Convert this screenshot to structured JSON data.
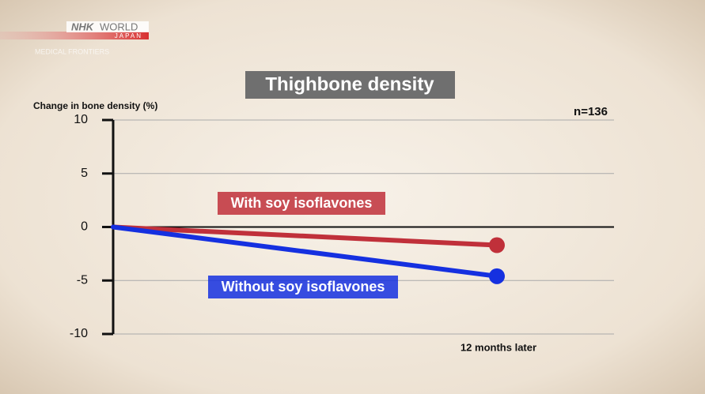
{
  "brand": {
    "mark": "NHK",
    "word": "WORLD",
    "sub": "JAPAN",
    "program": "MEDICAL FRONTIERS"
  },
  "chart_data": {
    "type": "line",
    "title": "Thighbone density",
    "y_label": "Change in bone density (%)",
    "annotation": "n=136",
    "categories": [
      null,
      "12 months later"
    ],
    "series": [
      {
        "name": "With soy isoflavones",
        "color": "#c0303a",
        "values": [
          0,
          -1.7
        ]
      },
      {
        "name": "Without soy isoflavones",
        "color": "#1530e0",
        "values": [
          0,
          -4.6
        ]
      }
    ],
    "ylim": [
      -10,
      10
    ],
    "yticks": [
      -10,
      -5,
      0,
      5,
      10
    ],
    "grid": true
  }
}
